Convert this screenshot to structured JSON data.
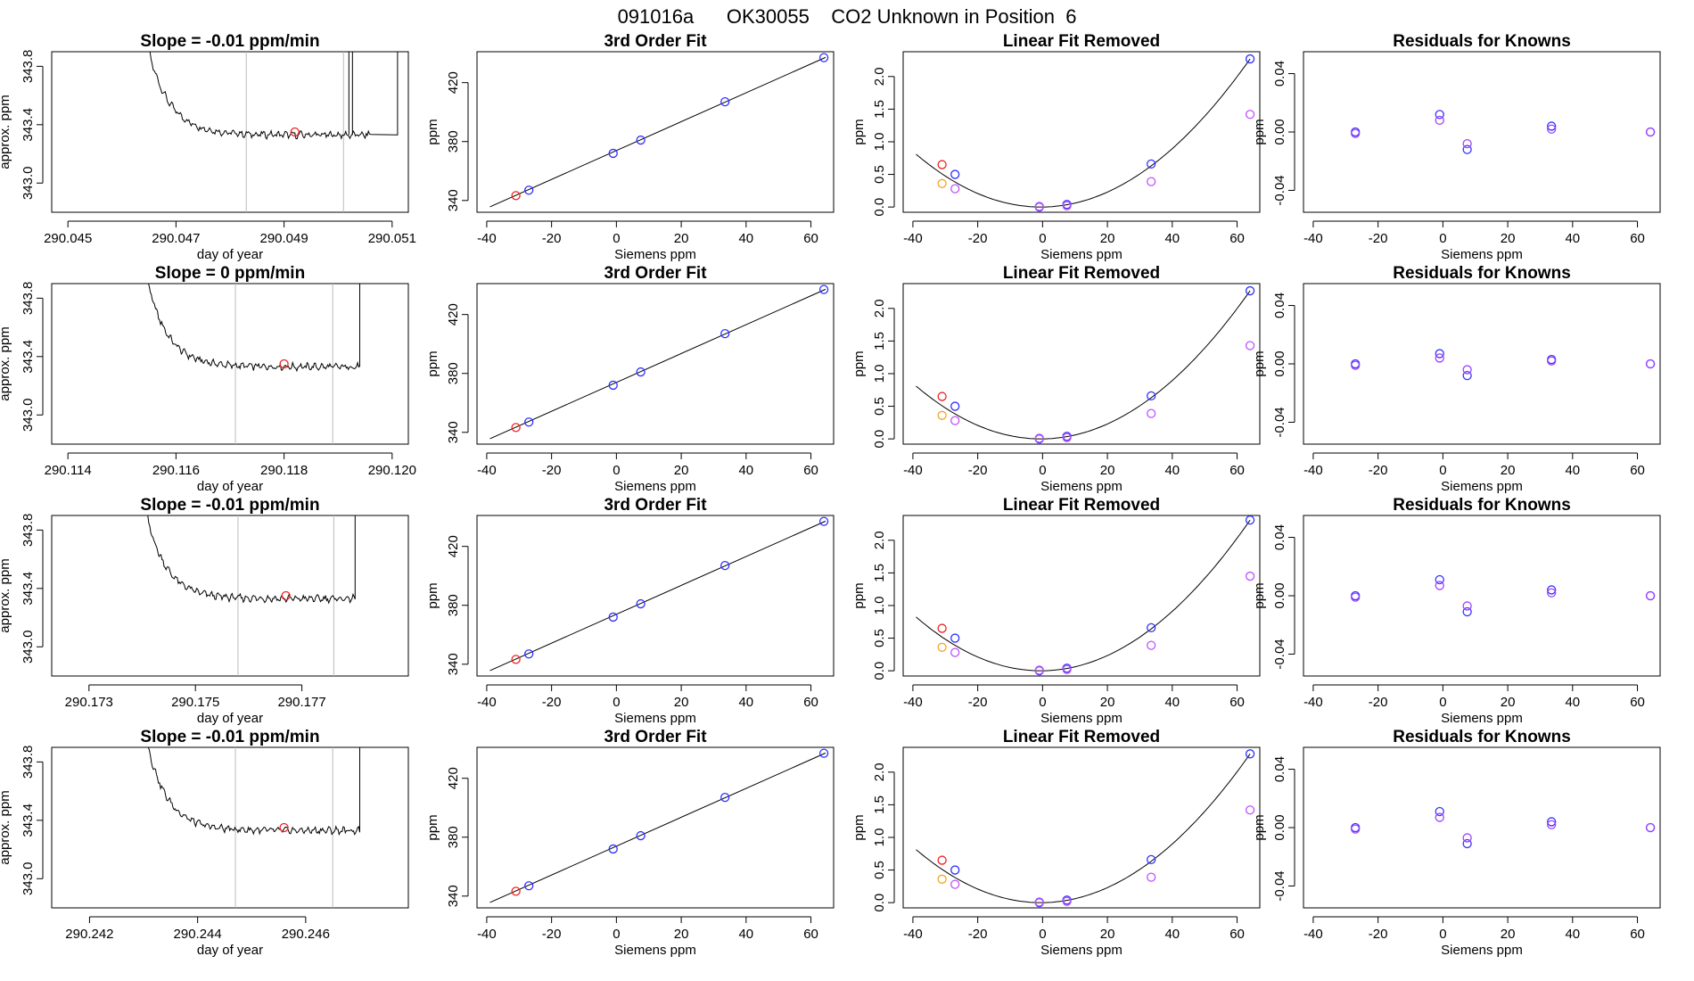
{
  "figure": {
    "suptitle": "091016a      OK30055    CO2 Unknown in Position  6"
  },
  "colors": {
    "line": "#000000",
    "known_point": "#3030ff",
    "unknown_point": "#ee2222",
    "orange_point": "#f5a623",
    "violet_point": "#c050ff",
    "residual_point_1": "#3333ff",
    "residual_point_2": "#a040ff",
    "marker_line": "#bbbbbb"
  },
  "rows": [
    {
      "trace": {
        "title": "Slope =  -0.01  ppm/min",
        "xlabel": "day of year",
        "ylabel": "approx. ppm",
        "xticks": [
          "290.045",
          "290.047",
          "290.049",
          "290.051"
        ],
        "xtick_values": [
          290.045,
          290.047,
          290.049,
          290.051
        ],
        "xlim": [
          290.0447,
          290.0513
        ],
        "yticks": [
          "343.0",
          "343.4",
          "343.8"
        ],
        "vlines": [
          290.0483,
          290.0501
        ],
        "marker": {
          "x": 290.0492,
          "y": 343.35
        },
        "trace_start": 290.0462,
        "trace_end": 290.0506,
        "spike_end": 290.0511,
        "extra_spike": 290.0502
      },
      "fit": {
        "title": "3rd Order Fit"
      },
      "linres": {
        "title": "Linear Fit Removed",
        "known_y": [
          0.5,
          0.0,
          0.04,
          0.66,
          2.27
        ],
        "violet_y": [
          0.28,
          0.01,
          0.02,
          0.39,
          1.42
        ]
      },
      "resid": {
        "title": "Residuals for Knowns",
        "r1": [
          0.0,
          0.012,
          -0.012,
          0.004,
          0.0
        ],
        "r2": [
          -0.001,
          0.008,
          -0.008,
          0.002,
          0.0
        ]
      }
    },
    {
      "trace": {
        "title": "Slope =  0  ppm/min",
        "xlabel": "day of year",
        "ylabel": "approx. ppm",
        "xticks": [
          "290.114",
          "290.116",
          "290.118",
          "290.120"
        ],
        "xtick_values": [
          290.114,
          290.116,
          290.118,
          290.12
        ],
        "xlim": [
          290.1137,
          290.1203
        ],
        "yticks": [
          "343.0",
          "343.4",
          "343.8"
        ],
        "vlines": [
          290.1171,
          290.1189
        ],
        "marker": {
          "x": 290.118,
          "y": 343.35
        },
        "trace_start": 290.1152,
        "trace_end": 290.1194,
        "spike_end": 290.1194,
        "extra_spike": null
      },
      "fit": {
        "title": "3rd Order Fit"
      },
      "linres": {
        "title": "Linear Fit Removed",
        "known_y": [
          0.5,
          0.0,
          0.04,
          0.66,
          2.27
        ],
        "violet_y": [
          0.28,
          0.01,
          0.02,
          0.39,
          1.43
        ]
      },
      "resid": {
        "title": "Residuals for Knowns",
        "r1": [
          0.0,
          0.007,
          -0.008,
          0.003,
          0.0
        ],
        "r2": [
          -0.001,
          0.004,
          -0.004,
          0.002,
          0.0
        ]
      }
    },
    {
      "trace": {
        "title": "Slope =  -0.01  ppm/min",
        "xlabel": "day of year",
        "ylabel": "approx. ppm",
        "xticks": [
          "290.173",
          "290.175",
          "290.177"
        ],
        "xtick_values": [
          290.173,
          290.175,
          290.177
        ],
        "xlim": [
          290.1723,
          290.179
        ],
        "yticks": [
          "343.0",
          "343.4",
          "343.8"
        ],
        "vlines": [
          290.1758,
          290.1776
        ],
        "marker": {
          "x": 290.1767,
          "y": 343.35
        },
        "trace_start": 290.1738,
        "trace_end": 290.178,
        "spike_end": 290.178,
        "extra_spike": null
      },
      "fit": {
        "title": "3rd Order Fit"
      },
      "linres": {
        "title": "Linear Fit Removed",
        "known_y": [
          0.5,
          0.0,
          0.04,
          0.66,
          2.31
        ],
        "violet_y": [
          0.28,
          0.01,
          0.02,
          0.39,
          1.45
        ]
      },
      "resid": {
        "title": "Residuals for Knowns",
        "r1": [
          0.0,
          0.011,
          -0.011,
          0.004,
          0.0
        ],
        "r2": [
          -0.001,
          0.007,
          -0.007,
          0.002,
          0.0
        ]
      }
    },
    {
      "trace": {
        "title": "Slope =  -0.01  ppm/min",
        "xlabel": "day of year",
        "ylabel": "approx. ppm",
        "xticks": [
          "290.242",
          "290.244",
          "290.246"
        ],
        "xtick_values": [
          290.242,
          290.244,
          290.246
        ],
        "xlim": [
          290.2413,
          290.2479
        ],
        "yticks": [
          "343.0",
          "343.4",
          "343.8"
        ],
        "vlines": [
          290.2447,
          290.2465
        ],
        "marker": {
          "x": 290.2456,
          "y": 343.35
        },
        "trace_start": 290.2428,
        "trace_end": 290.247,
        "spike_end": 290.247,
        "extra_spike": null
      },
      "fit": {
        "title": "3rd Order Fit"
      },
      "linres": {
        "title": "Linear Fit Removed",
        "known_y": [
          0.5,
          0.0,
          0.04,
          0.66,
          2.28
        ],
        "violet_y": [
          0.28,
          0.01,
          0.02,
          0.39,
          1.42
        ]
      },
      "resid": {
        "title": "Residuals for Knowns",
        "r1": [
          0.0,
          0.011,
          -0.011,
          0.004,
          0.0
        ],
        "r2": [
          -0.001,
          0.007,
          -0.007,
          0.002,
          0.0
        ]
      }
    }
  ],
  "shared": {
    "fit_xlabel": "Siemens ppm",
    "fit_ylabel": "ppm",
    "fit_xticks": [
      -40,
      -20,
      0,
      20,
      40,
      60
    ],
    "fit_yticks": [
      340,
      380,
      420
    ],
    "fit_xlim": [
      -43,
      67
    ],
    "fit_ylim": [
      332,
      441
    ],
    "known_x": [
      -27,
      -1,
      7.5,
      33.5,
      64
    ],
    "known_ppm": [
      347,
      372,
      381,
      407,
      437
    ],
    "unknown_x": -31,
    "unknown_ppm": 343.3,
    "linres_xlim": [
      -43,
      67
    ],
    "linres_ylim": [
      -0.08,
      2.38
    ],
    "linres_yticks": [
      0.0,
      0.5,
      1.0,
      1.5,
      2.0
    ],
    "linres_yticklabels": [
      "0.0",
      "0.5",
      "1.0",
      "1.5",
      "2.0"
    ],
    "linres_unknown": {
      "x": -31,
      "y": 0.65
    },
    "linres_orange": {
      "x": -31,
      "y": 0.36
    },
    "resid_xlim": [
      -43,
      67
    ],
    "resid_ylim": [
      -0.055,
      0.055
    ],
    "resid_yticks": [
      -0.04,
      0.0,
      0.04
    ],
    "resid_yticklabels": [
      "-0.04",
      "0.00",
      "0.04"
    ],
    "resid_ylabel": "ppm"
  },
  "chart_data": [
    {
      "type": "line",
      "title": "Slope =  -0.01  ppm/min",
      "xlabel": "day of year",
      "ylabel": "approx. ppm",
      "ylim": [
        342.8,
        343.9
      ]
    },
    {
      "type": "scatter",
      "title": "3rd Order Fit",
      "xlabel": "Siemens ppm",
      "ylabel": "ppm",
      "x": [
        -27,
        -1,
        7.5,
        33.5,
        64
      ],
      "y": [
        347,
        372,
        381,
        407,
        437
      ],
      "xlim": [
        -43,
        67
      ],
      "ylim": [
        332,
        441
      ]
    },
    {
      "type": "scatter",
      "title": "Linear Fit Removed",
      "xlabel": "Siemens ppm",
      "ylabel": "ppm",
      "series": [
        {
          "values": [
            0.5,
            0.0,
            0.04,
            0.66,
            2.27
          ]
        },
        {
          "values": [
            0.28,
            0.01,
            0.02,
            0.39,
            1.42
          ]
        }
      ],
      "x": [
        -27,
        -1,
        7.5,
        33.5,
        64
      ]
    },
    {
      "type": "scatter",
      "title": "Residuals for Knowns",
      "xlabel": "Siemens ppm",
      "ylabel": "ppm",
      "series": [
        {
          "values": [
            0.0,
            0.012,
            -0.012,
            0.004,
            0.0
          ]
        },
        {
          "values": [
            -0.001,
            0.008,
            -0.008,
            0.002,
            0.0
          ]
        }
      ],
      "x": [
        -27,
        -1,
        7.5,
        33.5,
        64
      ],
      "ylim": [
        -0.055,
        0.055
      ]
    }
  ]
}
